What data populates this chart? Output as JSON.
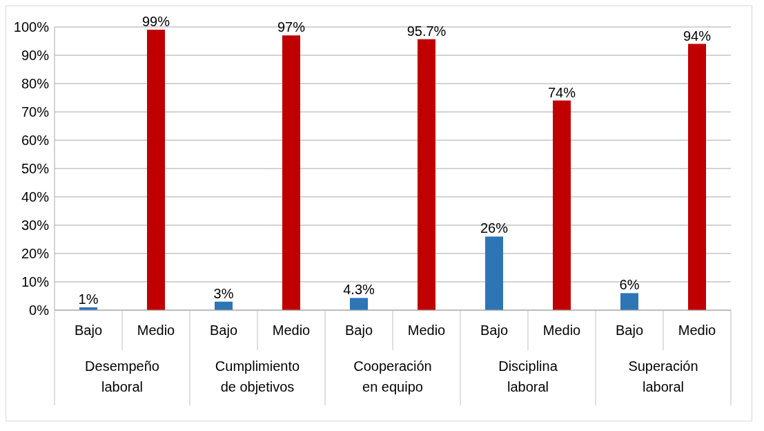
{
  "chart_data": {
    "type": "bar",
    "categories": [
      "Desempeño laboral",
      "Cumplimiento de objetivos",
      "Cooperación en equipo",
      "Disciplina laboral",
      "Superación laboral"
    ],
    "series": [
      {
        "name": "Bajo",
        "color": "#2e75b6",
        "values": [
          1,
          3,
          4.3,
          26,
          6
        ],
        "value_labels": [
          "1%",
          "3%",
          "4.3%",
          "26%",
          "6%"
        ]
      },
      {
        "name": "Medio",
        "color": "#c00000",
        "values": [
          99,
          97,
          95.7,
          74,
          94
        ],
        "value_labels": [
          "99%",
          "97%",
          "95.7%",
          "74%",
          "94%"
        ]
      }
    ],
    "ylim": [
      0,
      100
    ],
    "yticks": [
      {
        "value": 0,
        "label": "0%"
      },
      {
        "value": 10,
        "label": "10%"
      },
      {
        "value": 20,
        "label": "20%"
      },
      {
        "value": 30,
        "label": "30%"
      },
      {
        "value": 40,
        "label": "40%"
      },
      {
        "value": 50,
        "label": "50%"
      },
      {
        "value": 60,
        "label": "60%"
      },
      {
        "value": 70,
        "label": "70%"
      },
      {
        "value": 80,
        "label": "80%"
      },
      {
        "value": 90,
        "label": "90%"
      },
      {
        "value": 100,
        "label": "100%"
      }
    ],
    "grid": "y",
    "legend": false
  }
}
